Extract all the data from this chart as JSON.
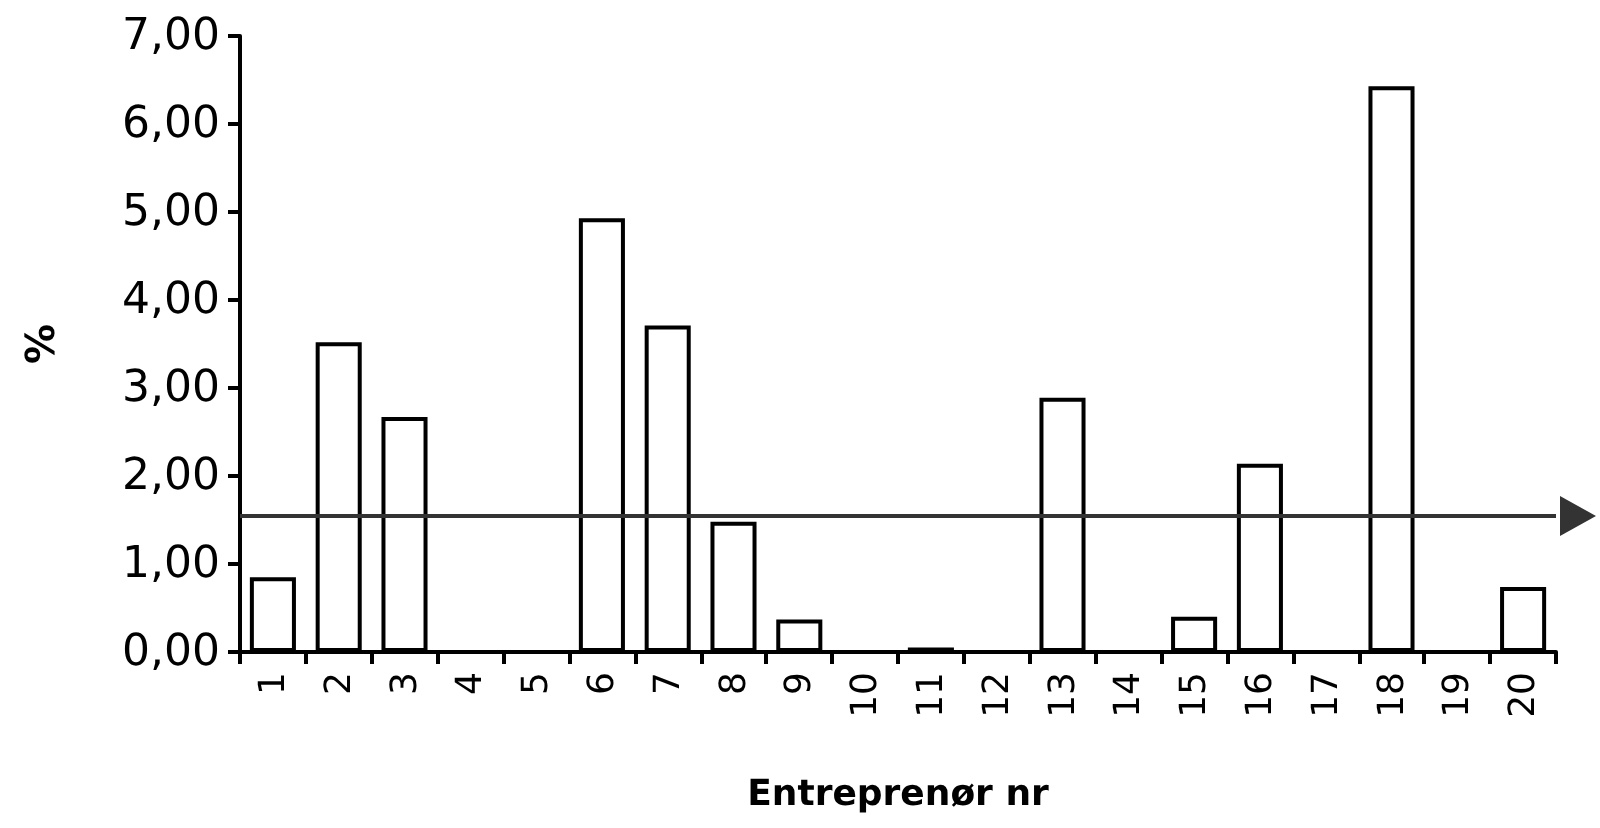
{
  "chart_data": {
    "type": "bar",
    "xlabel": "Entreprenør nr",
    "ylabel": "%",
    "categories": [
      "1",
      "2",
      "3",
      "4",
      "5",
      "6",
      "7",
      "8",
      "9",
      "10",
      "11",
      "12",
      "13",
      "14",
      "15",
      "16",
      "17",
      "18",
      "19",
      "20"
    ],
    "values": [
      0.85,
      3.52,
      2.67,
      0,
      0,
      4.93,
      3.71,
      1.48,
      0.37,
      0,
      0.05,
      0,
      2.89,
      0,
      0.4,
      2.14,
      0,
      6.43,
      0,
      0.74
    ],
    "color": "#ffffff",
    "ylim": [
      0,
      7
    ],
    "yticks": [
      {
        "value": 0,
        "label": "0,00"
      },
      {
        "value": 1,
        "label": "1,00"
      },
      {
        "value": 2,
        "label": "2,00"
      },
      {
        "value": 3,
        "label": "3,00"
      },
      {
        "value": 4,
        "label": "4,00"
      },
      {
        "value": 5,
        "label": "5,00"
      },
      {
        "value": 6,
        "label": "6,00"
      },
      {
        "value": 7,
        "label": "7,00"
      }
    ],
    "ref_lines": [
      {
        "axis": "y",
        "value": 1.55,
        "color": "#333333"
      }
    ],
    "grid": false
  }
}
